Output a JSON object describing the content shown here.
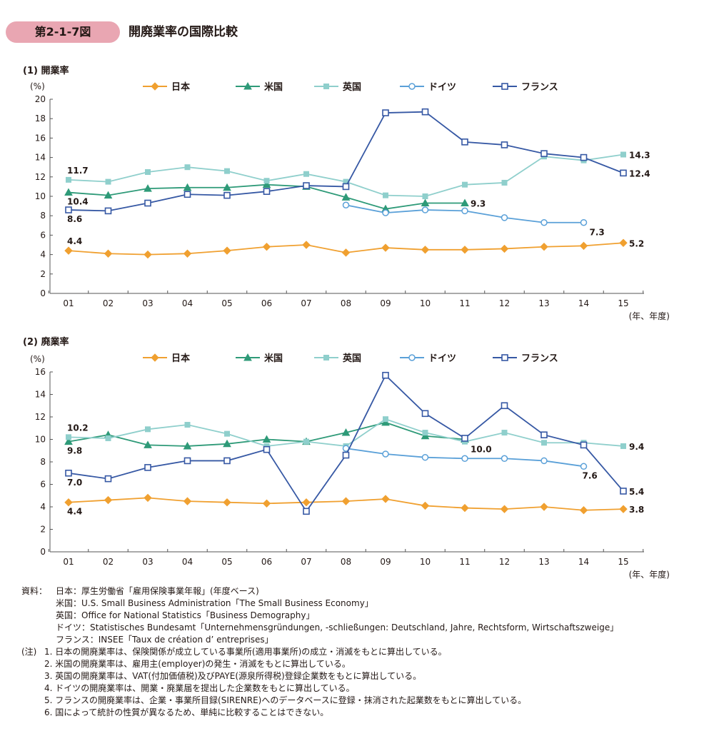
{
  "figure": {
    "number": "第2-1-7図",
    "title": "開廃業率の国際比較"
  },
  "legend_labels": [
    "日本",
    "米国",
    "英国",
    "ドイツ",
    "フランス"
  ],
  "colors": {
    "日本": "#f0a030",
    "米国": "#2e9a78",
    "英国": "#8fcfcc",
    "ドイツ": "#5aa0d8",
    "フランス": "#3658a4",
    "badge": "#e9a6b2"
  },
  "chart_data": [
    {
      "type": "line",
      "title": "(1) 開業率",
      "ylabel": "(%)",
      "xlabel": "(年、年度)",
      "categories": [
        "01",
        "02",
        "03",
        "04",
        "05",
        "06",
        "07",
        "08",
        "09",
        "10",
        "11",
        "12",
        "13",
        "14",
        "15"
      ],
      "ylim": [
        0,
        20
      ],
      "yticks": [
        0,
        2,
        4,
        6,
        8,
        10,
        12,
        14,
        16,
        18,
        20
      ],
      "series": [
        {
          "name": "日本",
          "marker": "diamond",
          "values": [
            4.4,
            4.1,
            4.0,
            4.1,
            4.4,
            4.8,
            5.0,
            4.2,
            4.7,
            4.5,
            4.5,
            4.6,
            4.8,
            4.9,
            5.2
          ]
        },
        {
          "name": "米国",
          "marker": "triangle",
          "values": [
            10.4,
            10.1,
            10.8,
            10.9,
            10.9,
            11.2,
            11.0,
            9.9,
            8.7,
            9.3,
            9.3,
            null,
            null,
            null,
            null
          ]
        },
        {
          "name": "英国",
          "marker": "square-filled",
          "values": [
            11.7,
            11.5,
            12.5,
            13.0,
            12.6,
            11.6,
            12.3,
            11.5,
            10.1,
            10.0,
            11.2,
            11.4,
            14.1,
            13.7,
            14.3
          ]
        },
        {
          "name": "ドイツ",
          "marker": "circle-open",
          "values": [
            null,
            null,
            null,
            null,
            null,
            null,
            null,
            9.1,
            8.3,
            8.6,
            8.5,
            7.8,
            7.3,
            7.3,
            null
          ]
        },
        {
          "name": "フランス",
          "marker": "square-open",
          "values": [
            8.6,
            8.5,
            9.3,
            10.2,
            10.1,
            10.5,
            11.1,
            11.0,
            18.6,
            18.7,
            15.6,
            15.3,
            14.4,
            14.0,
            12.4
          ]
        }
      ],
      "data_labels": [
        {
          "text": "11.7",
          "series": "英国",
          "index": 0,
          "pos": "above"
        },
        {
          "text": "10.4",
          "series": "米国",
          "index": 0,
          "pos": "below"
        },
        {
          "text": "8.6",
          "series": "フランス",
          "index": 0,
          "pos": "below"
        },
        {
          "text": "4.4",
          "series": "日本",
          "index": 0,
          "pos": "above"
        },
        {
          "text": "9.3",
          "series": "米国",
          "index": 10,
          "pos": "right"
        },
        {
          "text": "7.3",
          "series": "ドイツ",
          "index": 13,
          "pos": "below-right"
        },
        {
          "text": "14.3",
          "series": "英国",
          "index": 14,
          "pos": "right"
        },
        {
          "text": "12.4",
          "series": "フランス",
          "index": 14,
          "pos": "right"
        },
        {
          "text": "5.2",
          "series": "日本",
          "index": 14,
          "pos": "right"
        }
      ]
    },
    {
      "type": "line",
      "title": "(2) 廃業率",
      "ylabel": "(%)",
      "xlabel": "(年、年度)",
      "categories": [
        "01",
        "02",
        "03",
        "04",
        "05",
        "06",
        "07",
        "08",
        "09",
        "10",
        "11",
        "12",
        "13",
        "14",
        "15"
      ],
      "ylim": [
        0,
        16
      ],
      "yticks": [
        0,
        2,
        4,
        6,
        8,
        10,
        12,
        14,
        16
      ],
      "series": [
        {
          "name": "日本",
          "marker": "diamond",
          "values": [
            4.4,
            4.6,
            4.8,
            4.5,
            4.4,
            4.3,
            4.4,
            4.5,
            4.7,
            4.1,
            3.9,
            3.8,
            4.0,
            3.7,
            3.8
          ]
        },
        {
          "name": "米国",
          "marker": "triangle",
          "values": [
            9.8,
            10.4,
            9.5,
            9.4,
            9.6,
            10.0,
            9.8,
            10.6,
            11.5,
            10.3,
            10.0,
            null,
            null,
            null,
            null
          ]
        },
        {
          "name": "英国",
          "marker": "square-filled",
          "values": [
            10.2,
            10.1,
            10.9,
            11.3,
            10.5,
            9.4,
            9.8,
            9.4,
            11.8,
            10.6,
            9.8,
            10.6,
            9.7,
            9.7,
            9.4
          ]
        },
        {
          "name": "ドイツ",
          "marker": "circle-open",
          "values": [
            null,
            null,
            null,
            null,
            null,
            null,
            null,
            9.2,
            8.7,
            8.4,
            8.3,
            8.3,
            8.1,
            7.6,
            null
          ]
        },
        {
          "name": "フランス",
          "marker": "square-open",
          "values": [
            7.0,
            6.5,
            7.5,
            8.1,
            8.1,
            9.1,
            3.6,
            8.6,
            15.7,
            12.3,
            10.1,
            13.0,
            10.4,
            9.5,
            5.4
          ]
        }
      ],
      "data_labels": [
        {
          "text": "10.2",
          "series": "英国",
          "index": 0,
          "pos": "above"
        },
        {
          "text": "9.8",
          "series": "米国",
          "index": 0,
          "pos": "below"
        },
        {
          "text": "7.0",
          "series": "フランス",
          "index": 0,
          "pos": "below"
        },
        {
          "text": "4.4",
          "series": "日本",
          "index": 0,
          "pos": "below"
        },
        {
          "text": "10.0",
          "series": "米国",
          "index": 10,
          "pos": "below-right"
        },
        {
          "text": "7.6",
          "series": "ドイツ",
          "index": 13,
          "pos": "below"
        },
        {
          "text": "9.4",
          "series": "英国",
          "index": 14,
          "pos": "right"
        },
        {
          "text": "5.4",
          "series": "フランス",
          "index": 14,
          "pos": "right"
        },
        {
          "text": "3.8",
          "series": "日本",
          "index": 14,
          "pos": "right"
        }
      ]
    }
  ],
  "sources": {
    "label": "資料：",
    "lines": [
      "日本：厚生労働省「雇用保険事業年報」(年度ベース)",
      "米国：U.S. Small Business Administration「The Small Business Economy」",
      "英国：Office for National Statistics「Business Demography」",
      "ドイツ：Statistisches Bundesamt「Unternehmensgründungen, -schließungen: Deutschland, Jahre, Rechtsform, Wirtschaftszweige」",
      "フランス：INSEE「Taux de création d’ entreprises」"
    ]
  },
  "notes": {
    "label": "(注)",
    "lines": [
      "1. 日本の開廃業率は、保険関係が成立している事業所(適用事業所)の成立・消滅をもとに算出している。",
      "2. 米国の開廃業率は、雇用主(employer)の発生・消滅をもとに算出している。",
      "3. 英国の開廃業率は、VAT(付加価値税)及びPAYE(源泉所得税)登録企業数をもとに算出している。",
      "4. ドイツの開廃業率は、開業・廃業届を提出した企業数をもとに算出している。",
      "5. フランスの開廃業率は、企業・事業所目録(SIRENRE)へのデータベースに登録・抹消された起業数をもとに算出している。",
      "6. 国によって統計の性質が異なるため、単純に比較することはできない。"
    ]
  }
}
